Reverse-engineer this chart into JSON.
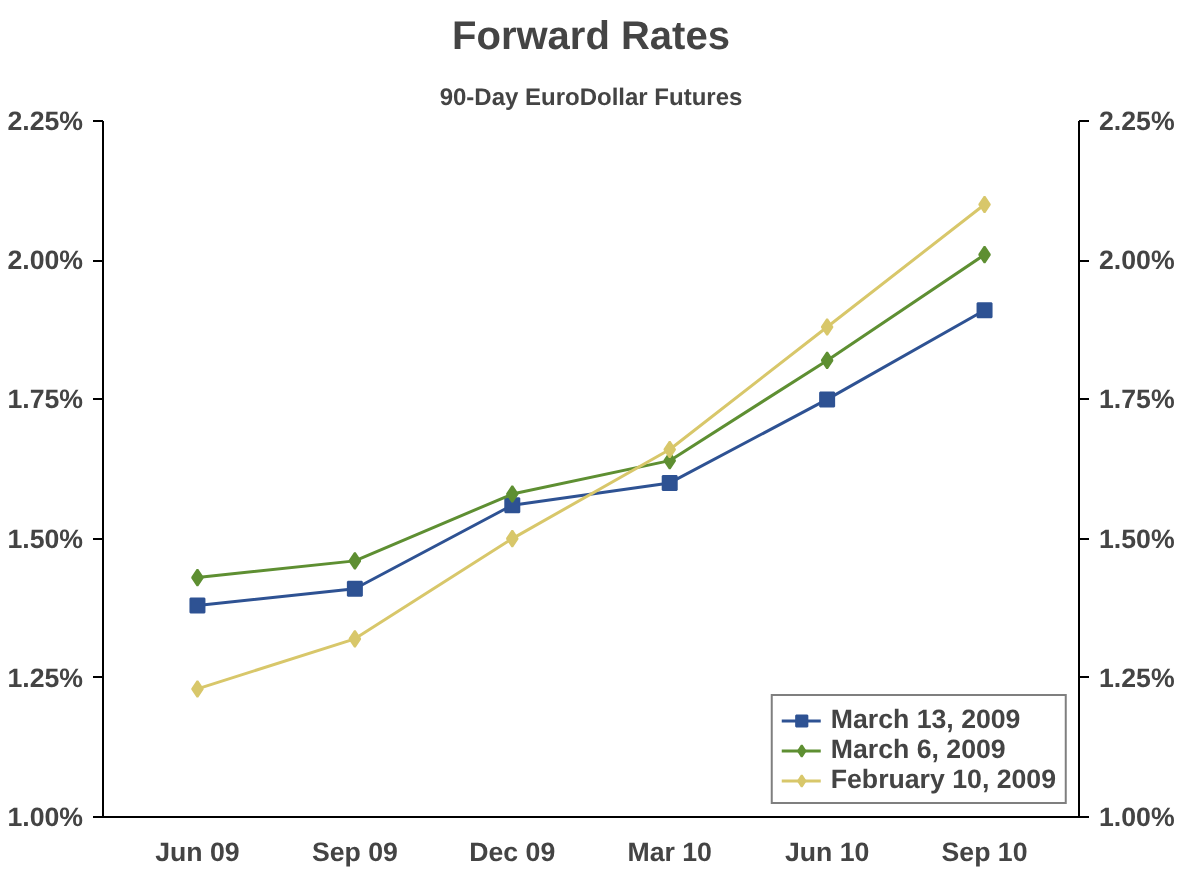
{
  "chart_data": {
    "type": "line",
    "title": "Forward Rates",
    "subtitle": "90-Day EuroDollar Futures",
    "categories": [
      "Jun 09",
      "Sep 09",
      "Dec 09",
      "Mar 10",
      "Jun 10",
      "Sep 10"
    ],
    "series": [
      {
        "name": "March 13, 2009",
        "color": "#2e5293",
        "marker": "square",
        "values": [
          1.38,
          1.41,
          1.56,
          1.6,
          1.75,
          1.91
        ]
      },
      {
        "name": "March 6, 2009",
        "color": "#5e8f32",
        "marker": "diamond",
        "values": [
          1.43,
          1.46,
          1.58,
          1.64,
          1.82,
          2.01
        ]
      },
      {
        "name": "February 10, 2009",
        "color": "#d8c76a",
        "marker": "diamond",
        "values": [
          1.23,
          1.32,
          1.5,
          1.66,
          1.88,
          2.1
        ]
      }
    ],
    "ylim": [
      1.0,
      2.25
    ],
    "yticks": [
      {
        "value": 1.0,
        "label": "1.00%"
      },
      {
        "value": 1.25,
        "label": "1.25%"
      },
      {
        "value": 1.5,
        "label": "1.50%"
      },
      {
        "value": 1.75,
        "label": "1.75%"
      },
      {
        "value": 2.0,
        "label": "2.00%"
      },
      {
        "value": 2.25,
        "label": "2.25%"
      }
    ],
    "y2lim": [
      1.0,
      2.25
    ],
    "y2ticks": [
      {
        "value": 1.0,
        "label": "1.00%"
      },
      {
        "value": 1.25,
        "label": "1.25%"
      },
      {
        "value": 1.5,
        "label": "1.50%"
      },
      {
        "value": 1.75,
        "label": "1.75%"
      },
      {
        "value": 2.0,
        "label": "2.00%"
      },
      {
        "value": 2.25,
        "label": "2.25%"
      }
    ],
    "grid": false,
    "legend": "bottom right",
    "line_style": "solid"
  }
}
